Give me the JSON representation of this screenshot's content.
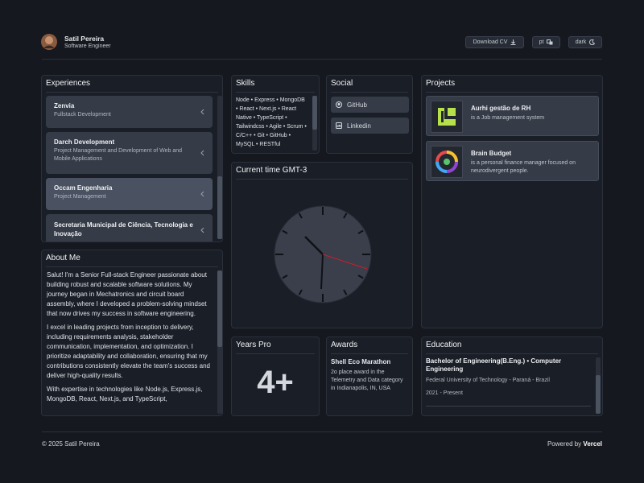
{
  "header": {
    "name": "Satil Pereira",
    "role": "Software Engineer",
    "buttons": [
      "Download CV",
      "pt",
      "dark"
    ]
  },
  "experiences": {
    "title": "Experiences",
    "items": [
      {
        "company": "Zenvia",
        "role": "Fullstack Development"
      },
      {
        "company": "Darch Development",
        "role": "Project Management and Development of Web and Mobile Applications"
      },
      {
        "company": "Occam Engenharia",
        "role": "Project Management"
      },
      {
        "company": "Secretaria Municipal de Ciência, Tecnologia e Inovação"
      }
    ]
  },
  "skills": {
    "title": "Skills",
    "text": "Node • Express • MongoDB • React • Next.js • React Native • TypeScript • Tailwindcss • Agile • Scrum • C/C++ • Git • GitHub • MySQL • RESTful"
  },
  "social": {
    "title": "Social",
    "links": [
      "GitHub",
      "Linkedin"
    ]
  },
  "projects": {
    "title": "Projects",
    "items": [
      {
        "name": "Aurhi gestão de RH",
        "description": "is a Job management system"
      },
      {
        "name": "Brain Budget",
        "description": "is a personal finance manager focused on neurodivergent people."
      }
    ]
  },
  "clock": {
    "title": "Current time GMT-3"
  },
  "about": {
    "title": "About Me",
    "paragraphs": [
      "Salut! I'm a Senior Full-stack Engineer passionate about building robust and scalable software solutions. My journey began in Mechatronics and circuit board assembly, where I developed a problem-solving mindset that now drives my success in software engineering.",
      "I excel in leading projects from inception to delivery, including requirements analysis, stakeholder communication, implementation, and optimization. I prioritize adaptability and collaboration, ensuring that my contributions consistently elevate the team's success and deliver high-quality results.",
      "With expertise in technologies like Node.js, Express.js, MongoDB, React, Next.js, and TypeScript,"
    ]
  },
  "years_pro": {
    "title": "Years Pro",
    "value": "4+"
  },
  "awards": {
    "title": "Awards",
    "items": [
      {
        "name": "Shell Eco Marathon",
        "description": "2o place award in the Telemetry and Data category in Indianapolis, IN, USA"
      }
    ]
  },
  "education": {
    "title": "Education",
    "items": [
      {
        "degree": "Bachelor of Engineering(B.Eng.) • Computer Engineering",
        "school": "Federal University of Technology - Paraná - Brazil",
        "period": "2021 - Present"
      }
    ]
  },
  "footer": {
    "copyright": "© 2025 Satil Pereira",
    "powered": "Powered by",
    "brand": "Vercel"
  }
}
